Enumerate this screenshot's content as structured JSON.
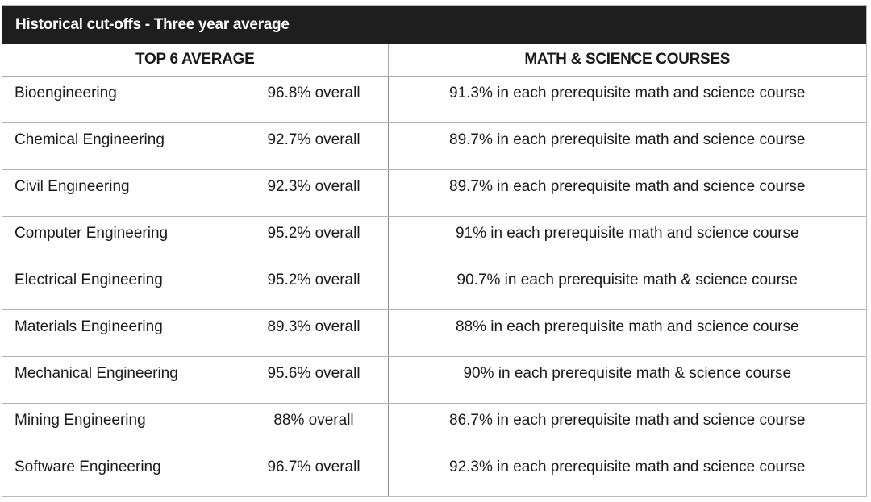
{
  "title": "Historical cut-offs - Three year average",
  "headers": {
    "top6": "TOP 6 AVERAGE",
    "math_science": "MATH & SCIENCE COURSES"
  },
  "rows": [
    {
      "program": "Bioengineering",
      "overall": "96.8% overall",
      "math": "91.3% in each prerequisite math and science course"
    },
    {
      "program": "Chemical Engineering",
      "overall": "92.7% overall",
      "math": "89.7% in each prerequisite math and science course"
    },
    {
      "program": "Civil Engineering",
      "overall": "92.3% overall",
      "math": "89.7% in each prerequisite math and science course"
    },
    {
      "program": "Computer Engineering",
      "overall": "95.2% overall",
      "math": "91% in each prerequisite math and science course"
    },
    {
      "program": "Electrical Engineering",
      "overall": "95.2% overall",
      "math": "90.7% in each prerequisite math & science course"
    },
    {
      "program": "Materials Engineering",
      "overall": "89.3% overall",
      "math": "88% in each prerequisite math and science course"
    },
    {
      "program": "Mechanical Engineering",
      "overall": "95.6% overall",
      "math": "90% in each prerequisite math & science course"
    },
    {
      "program": "Mining Engineering",
      "overall": "88% overall",
      "math": "86.7% in each prerequisite math and science course"
    },
    {
      "program": "Software Engineering",
      "overall": "96.7% overall",
      "math": "92.3% in each prerequisite math and science course"
    }
  ]
}
